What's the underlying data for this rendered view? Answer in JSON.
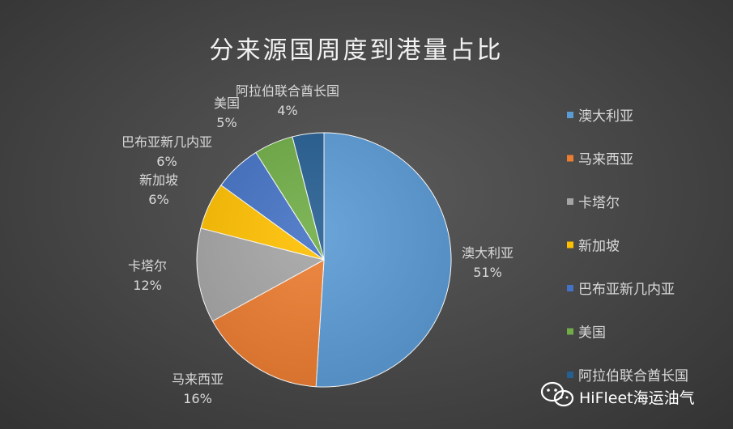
{
  "chart_data": {
    "type": "pie",
    "title": "分来源国周度到港量占比",
    "categories": [
      "澳大利亚",
      "马来西亚",
      "卡塔尔",
      "新加坡",
      "巴布亚新几内亚",
      "美国",
      "阿拉伯联合酋长国"
    ],
    "values": [
      51,
      16,
      12,
      6,
      6,
      5,
      4
    ],
    "value_labels": [
      "51%",
      "16%",
      "12%",
      "6%",
      "6%",
      "5%",
      "4%"
    ],
    "colors": [
      "#5b9bd5",
      "#ed7d31",
      "#a5a5a5",
      "#ffc000",
      "#4472c4",
      "#70ad47",
      "#255e91"
    ],
    "legend_position": "right"
  },
  "watermark": {
    "text": "HiFleet海运油气",
    "icon": "wechat-icon"
  }
}
